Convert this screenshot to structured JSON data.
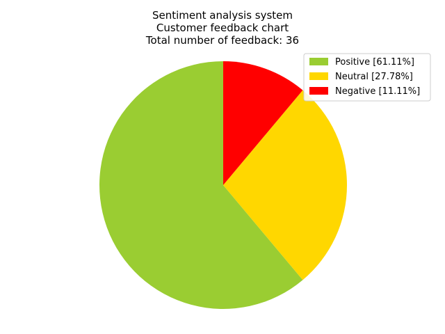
{
  "chart_data": {
    "type": "pie",
    "title_lines": [
      "Sentiment analysis system",
      "Customer feedback chart",
      "Total number of feedback: 36"
    ],
    "slices": [
      {
        "label": "Positive [61.11%]",
        "value": 22,
        "percent": 61.11,
        "color": "#9acd32"
      },
      {
        "label": "Neutral [27.78%]",
        "value": 10,
        "percent": 27.78,
        "color": "#ffd700"
      },
      {
        "label": "Negative [11.11%]",
        "value": 4,
        "percent": 11.11,
        "color": "#ff0000"
      }
    ],
    "start_angle_deg": 90,
    "direction": "counterclockwise",
    "legend": {
      "position": "upper-right"
    }
  }
}
